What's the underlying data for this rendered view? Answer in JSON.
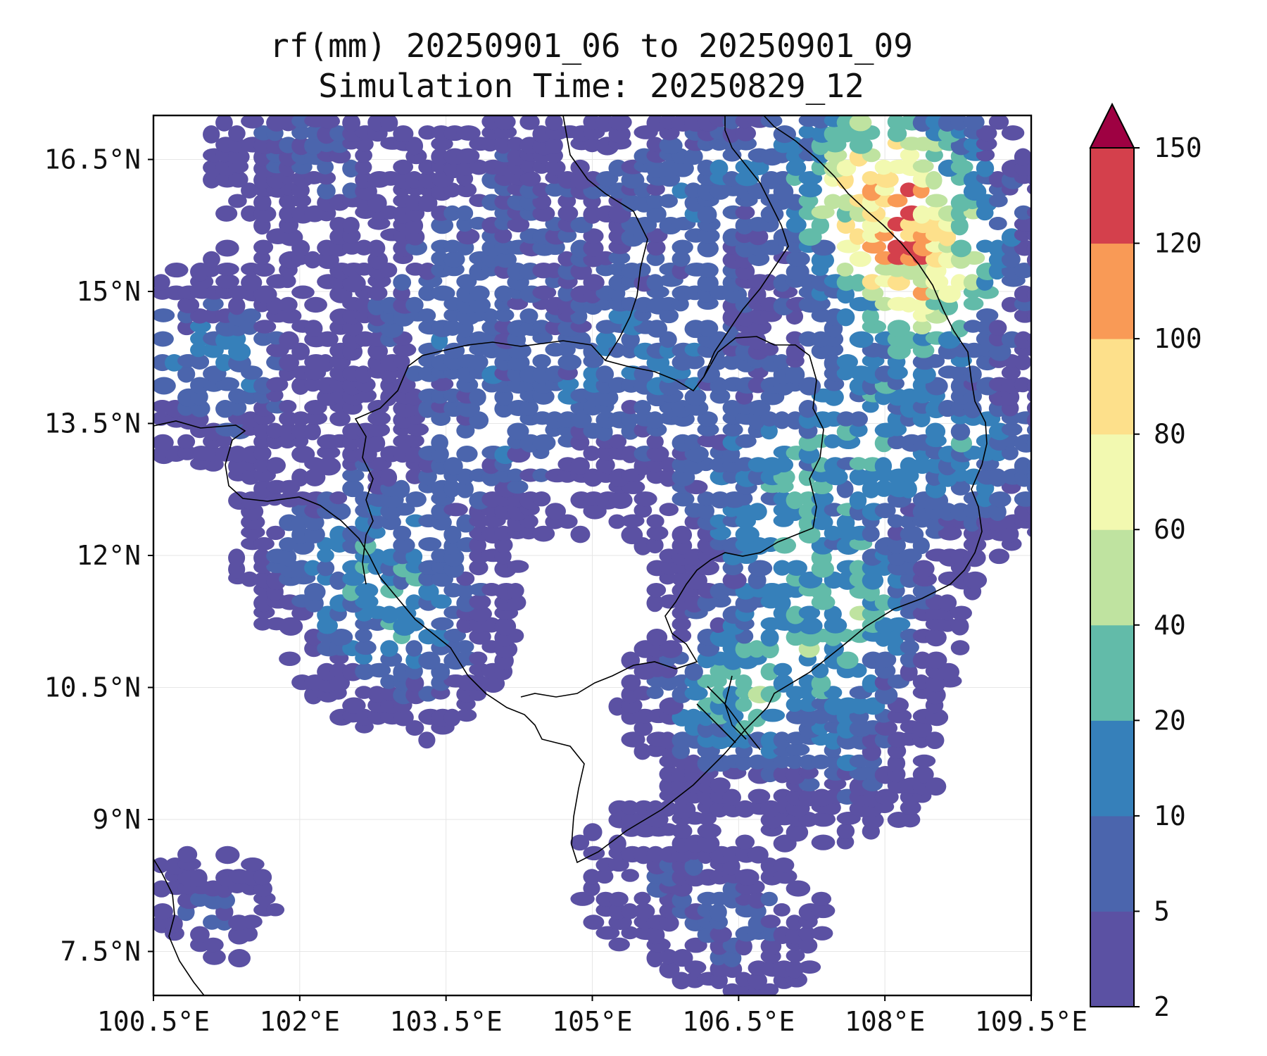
{
  "title": {
    "line1": "rf(mm) 20250901_06 to 20250901_09",
    "line2": "Simulation Time: 20250829_12"
  },
  "map": {
    "lon_range": [
      100.5,
      109.5
    ],
    "lat_range": [
      7.0,
      17.0
    ],
    "lon_ticks": [
      "100.5°E",
      "102°E",
      "103.5°E",
      "105°E",
      "106.5°E",
      "108°E",
      "109.5°E"
    ],
    "lat_ticks": [
      "16.5°N",
      "15°N",
      "13.5°N",
      "12°N",
      "10.5°N",
      "9°N",
      "7.5°N"
    ],
    "grid": true,
    "field": "rainfall accumulation (mm)",
    "coastlines_and_borders": true
  },
  "colorbar": {
    "levels": [
      "2",
      "5",
      "10",
      "20",
      "40",
      "60",
      "80",
      "100",
      "120",
      "150"
    ],
    "colors": [
      "#5b51a3",
      "#4b65ad",
      "#3680ba",
      "#62bba9",
      "#bfe3a0",
      "#f2f9b0",
      "#fde08b",
      "#f99a56",
      "#d4404c",
      "#9e0142"
    ],
    "extend": "max",
    "orientation": "vertical"
  },
  "chart_data": {
    "type": "heatmap",
    "title": "rf(mm) 20250901_06 to 20250901_09",
    "subtitle": "Simulation Time: 20250829_12",
    "xlabel": "",
    "ylabel": "",
    "xlim": [
      100.5,
      109.5
    ],
    "ylim": [
      7.0,
      17.0
    ],
    "contour_levels": [
      2,
      5,
      10,
      20,
      40,
      60,
      80,
      100,
      120,
      150
    ],
    "grid": true
  }
}
